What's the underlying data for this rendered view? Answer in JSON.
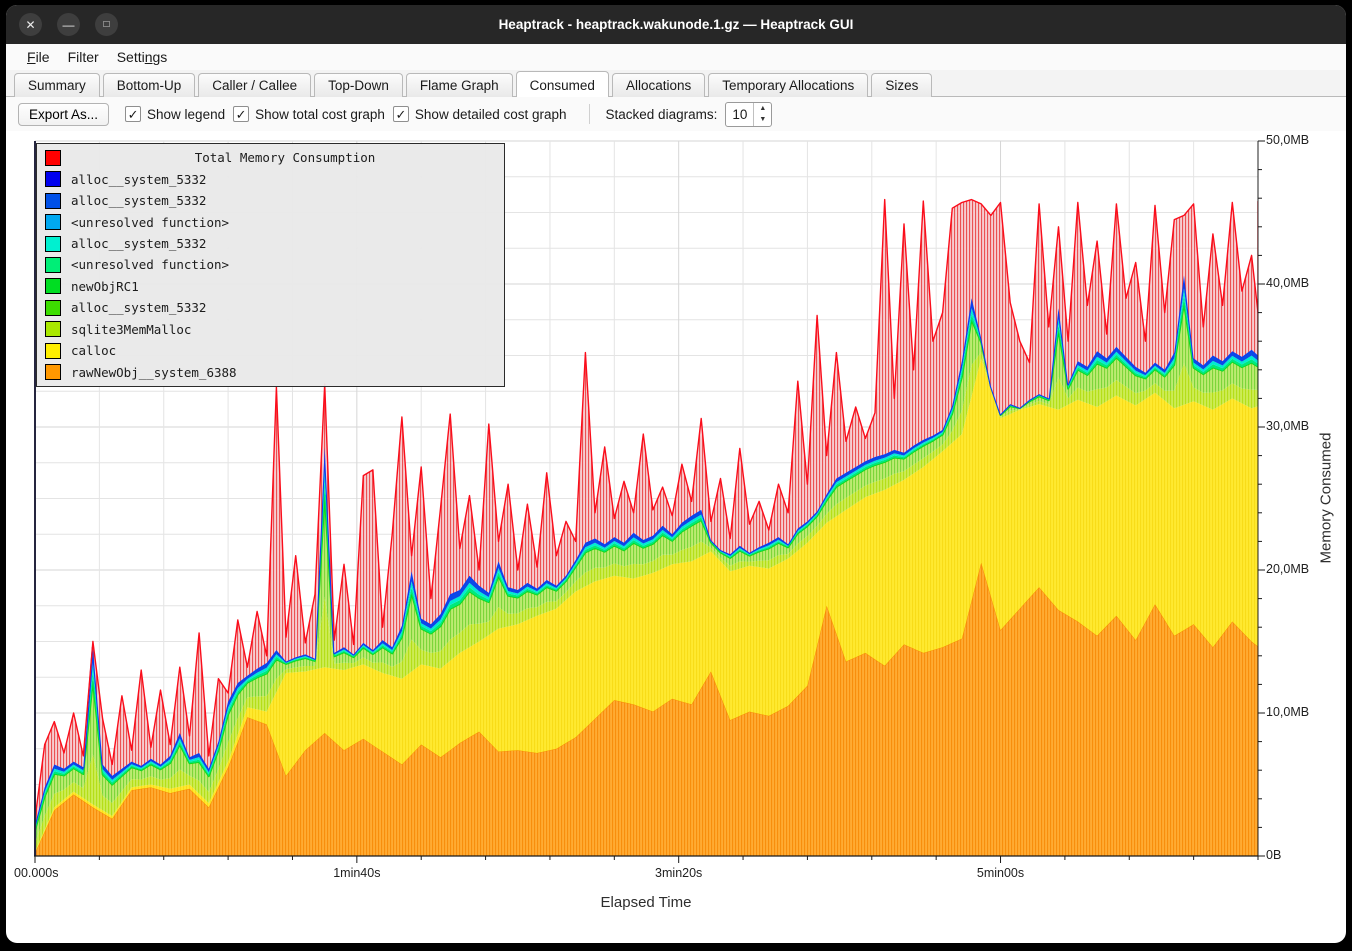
{
  "window": {
    "title": "Heaptrack - heaptrack.wakunode.1.gz — Heaptrack GUI",
    "controls": [
      {
        "name": "close",
        "glyph": "✕"
      },
      {
        "name": "minimize",
        "glyph": "—"
      },
      {
        "name": "maximize",
        "glyph": "□"
      }
    ]
  },
  "menu": {
    "items": [
      {
        "label": "File",
        "accel_index": 0
      },
      {
        "label": "Filter",
        "accel_index": null
      },
      {
        "label": "Settings",
        "accel_index": 5
      }
    ]
  },
  "tabs": {
    "active": "Consumed",
    "items": [
      "Summary",
      "Bottom-Up",
      "Caller / Callee",
      "Top-Down",
      "Flame Graph",
      "Consumed",
      "Allocations",
      "Temporary Allocations",
      "Sizes"
    ]
  },
  "toolbar": {
    "export_label": "Export As...",
    "checkboxes": [
      {
        "label": "Show legend",
        "checked": true
      },
      {
        "label": "Show total cost graph",
        "checked": true
      },
      {
        "label": "Show detailed cost graph",
        "checked": true
      }
    ],
    "stacked_label": "Stacked diagrams:",
    "stacked_value": "10"
  },
  "icons": {
    "checkbox_check": "✓",
    "spin_up": "▲",
    "spin_down": "▼"
  },
  "chart_data": {
    "type": "area",
    "stacked": true,
    "xlabel": "Elapsed Time",
    "ylabel": "Memory Consumed",
    "x_max_s": 380,
    "ylim_mb": [
      0,
      50
    ],
    "x_ticks": [
      {
        "s": 0,
        "label": "00.000s"
      },
      {
        "s": 100,
        "label": "1min40s"
      },
      {
        "s": 200,
        "label": "3min20s"
      },
      {
        "s": 300,
        "label": "5min00s"
      }
    ],
    "y_ticks": [
      {
        "mb": 0,
        "label": "0B"
      },
      {
        "mb": 10,
        "label": "10,0MB"
      },
      {
        "mb": 20,
        "label": "20,0MB"
      },
      {
        "mb": 30,
        "label": "30,0MB"
      },
      {
        "mb": 40,
        "label": "40,0MB"
      },
      {
        "mb": 50,
        "label": "50,0MB"
      }
    ],
    "grid": {
      "h_step_mb": 2.5,
      "v_step_s": 20,
      "y_minor_tick_mb": 2,
      "x_minor_tick_s": 20
    },
    "legend": {
      "position": "top-left",
      "items": [
        {
          "label": "Total Memory Consumption",
          "color": "#ff0000",
          "is_title": true
        },
        {
          "label": "alloc__system_5332",
          "color": "#0000ee"
        },
        {
          "label": "alloc__system_5332",
          "color": "#0050e8"
        },
        {
          "label": "<unresolved function>",
          "color": "#00a8f0"
        },
        {
          "label": "alloc__system_5332",
          "color": "#00f0d0"
        },
        {
          "label": "<unresolved function>",
          "color": "#00ee77"
        },
        {
          "label": "newObjRC1",
          "color": "#00dd22"
        },
        {
          "label": "alloc__system_5332",
          "color": "#3ddd00"
        },
        {
          "label": "sqlite3MemMalloc",
          "color": "#aae800"
        },
        {
          "label": "calloc",
          "color": "#ffee00"
        },
        {
          "label": "rawNewObj__system_6388",
          "color": "#ff9800"
        }
      ]
    },
    "series": {
      "stack_step_s": 6,
      "detail_step_s": 3,
      "rawNewObj_top_mb": [
        0.2,
        3.2,
        4.3,
        3.4,
        2.6,
        4.6,
        4.8,
        4.4,
        4.7,
        3.4,
        6.2,
        9.7,
        9.2,
        5.6,
        7.4,
        8.6,
        7.4,
        8.2,
        7.3,
        6.4,
        7.8,
        6.9,
        7.9,
        8.7,
        7.3,
        7.4,
        7.2,
        7.5,
        8.3,
        9.6,
        10.9,
        10.6,
        10.1,
        11.0,
        10.6,
        12.9,
        9.5,
        10.1,
        9.8,
        10.5,
        11.9,
        17.5,
        13.6,
        14.2,
        13.3,
        14.8,
        14.2,
        14.6,
        15.2,
        20.5,
        15.8,
        17.3,
        18.8,
        17.2,
        16.4,
        15.4,
        16.8,
        15.1,
        17.6,
        15.4,
        16.2,
        14.6,
        16.4,
        15.0,
        14.3
      ],
      "calloc_top_mb": [
        0.3,
        3.4,
        4.5,
        3.6,
        2.8,
        4.8,
        5.0,
        4.7,
        5.0,
        3.7,
        6.6,
        10.4,
        10.1,
        12.8,
        12.9,
        13.2,
        13.0,
        13.4,
        12.8,
        12.4,
        13.4,
        13.1,
        14.2,
        15.0,
        15.9,
        16.2,
        16.8,
        17.3,
        18.5,
        19.2,
        19.6,
        19.4,
        19.8,
        20.4,
        20.6,
        21.3,
        19.9,
        20.3,
        20.1,
        20.8,
        21.9,
        23.3,
        24.2,
        25.1,
        25.6,
        26.3,
        27.2,
        28.3,
        29.5,
        34.8,
        30.6,
        31.2,
        31.6,
        31.2,
        31.9,
        31.4,
        32.2,
        31.5,
        32.4,
        31.3,
        31.8,
        31.2,
        32.0,
        31.3,
        31.6
      ],
      "detail_stack_top_mb": [
        2.2,
        4.8,
        6.4,
        6.1,
        6.6,
        6.2,
        14.6,
        6.4,
        5.6,
        6.1,
        6.6,
        6.3,
        6.8,
        6.4,
        7.0,
        8.6,
        6.9,
        7.2,
        6.1,
        8.0,
        10.8,
        12.1,
        12.6,
        13.1,
        13.5,
        14.4,
        13.6,
        13.9,
        14.1,
        13.8,
        28.6,
        14.2,
        14.6,
        14.1,
        14.9,
        14.4,
        15.1,
        14.6,
        16.1,
        19.9,
        16.6,
        16.2,
        16.9,
        18.3,
        18.6,
        19.6,
        18.9,
        18.4,
        20.6,
        18.8,
        18.6,
        19.1,
        18.7,
        19.3,
        18.9,
        19.6,
        20.7,
        21.9,
        22.2,
        21.8,
        22.3,
        21.9,
        22.6,
        22.1,
        22.4,
        23.1,
        22.5,
        23.3,
        23.8,
        24.2,
        22.1,
        21.4,
        21.1,
        21.7,
        21.2,
        21.6,
        21.9,
        22.3,
        21.8,
        22.9,
        23.4,
        24.1,
        25.3,
        26.4,
        26.8,
        27.2,
        27.6,
        27.9,
        28.1,
        28.4,
        28.2,
        28.7,
        29.1,
        29.4,
        29.8,
        31.5,
        34.6,
        39.0,
        36.2,
        31.4,
        30.9,
        31.6,
        31.2,
        31.9,
        32.3,
        32.0,
        38.3,
        33.0,
        34.6,
        34.2,
        35.3,
        34.8,
        35.6,
        34.9,
        34.2,
        33.8,
        34.5,
        34.0,
        35.2,
        40.6,
        34.8,
        34.3,
        35.0,
        34.6,
        35.3,
        34.9,
        35.4,
        35.0,
        36.1
      ],
      "total_mb": [
        2.6,
        7.8,
        9.4,
        7.2,
        10.0,
        7.0,
        15.0,
        9.6,
        6.4,
        11.2,
        7.4,
        13.0,
        7.6,
        11.6,
        7.8,
        13.2,
        8.4,
        15.6,
        7.0,
        12.4,
        11.4,
        16.5,
        13.2,
        17.1,
        14.0,
        32.8,
        15.3,
        21.0,
        14.9,
        18.3,
        33.0,
        15.1,
        20.4,
        14.8,
        26.6,
        27.0,
        16.0,
        22.5,
        30.7,
        21.0,
        27.2,
        18.0,
        24.3,
        30.9,
        21.5,
        25.2,
        20.0,
        30.2,
        22.0,
        26.0,
        20.0,
        24.6,
        20.2,
        26.8,
        21.0,
        23.4,
        22.0,
        35.2,
        24.0,
        28.6,
        23.6,
        26.2,
        24.0,
        29.5,
        24.2,
        25.8,
        23.8,
        27.4,
        24.8,
        30.6,
        23.4,
        26.4,
        22.2,
        28.5,
        23.2,
        24.8,
        22.8,
        26.0,
        24.0,
        33.2,
        26.0,
        37.8,
        28.0,
        35.2,
        29.0,
        31.4,
        29.2,
        31.0,
        45.9,
        32.0,
        44.2,
        34.0,
        45.8,
        36.0,
        38.0,
        45.3,
        45.7,
        45.9,
        45.6,
        44.8,
        45.7,
        38.7,
        36.0,
        34.5,
        45.6,
        37.0,
        44.0,
        36.0,
        45.7,
        38.5,
        43.0,
        36.5,
        45.6,
        39.0,
        41.5,
        36.0,
        45.5,
        38.0,
        44.5,
        44.8,
        45.6,
        37.0,
        43.5,
        38.5,
        45.7,
        39.5,
        42.0,
        38.0,
        45.8
      ]
    },
    "render_hints": {
      "band_fractions": {
        "sqlite3MemMalloc": 0.32,
        "greens": 0.78,
        "spring": 0.84,
        "cyan": 0.9
      },
      "layer_colors": {
        "orange_base": "#ffab33",
        "orange_hatch": "#f68500",
        "yellow_base": "#ffe930",
        "yellow_hatch": "#f2d000",
        "lime_base": "#cdec55",
        "lime_hatch": "#a9d900",
        "green_base": "#bdeb72",
        "green_hatch": "#62cc22",
        "green_line": "#10d91c",
        "spring_fill": "#00e97c",
        "cyan_fill": "#00ecd2",
        "blue_fill": "#0a49e8",
        "blue_line": "#0d3df0",
        "red_base": "#f6cdd1",
        "red_hatch": "#e93535",
        "red_line": "#fb0d1b"
      }
    }
  }
}
